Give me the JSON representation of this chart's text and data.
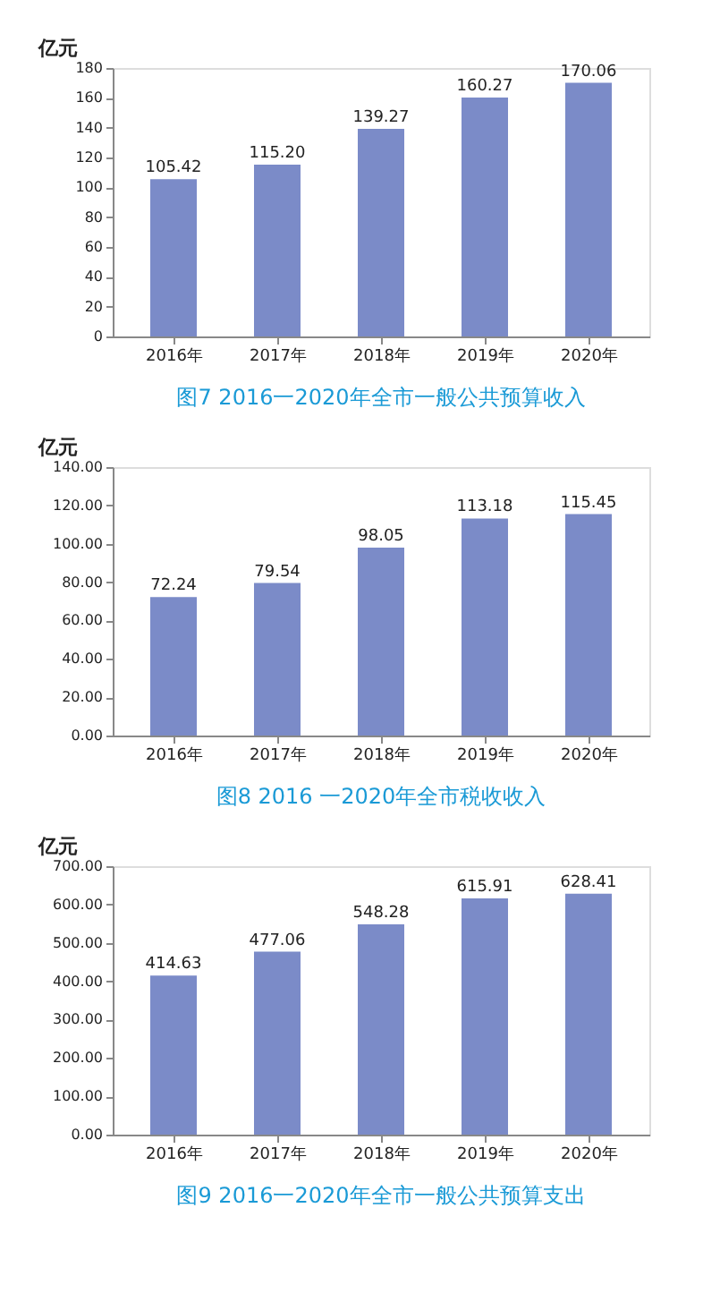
{
  "chart_data": [
    {
      "type": "bar",
      "title": "图7  2016一2020年全市一般公共预算收入",
      "ylabel": "亿元",
      "categories": [
        "2016年",
        "2017年",
        "2018年",
        "2019年",
        "2020年"
      ],
      "values": [
        105.42,
        115.2,
        139.27,
        160.27,
        170.06
      ],
      "value_labels": [
        "105.42",
        "115.20",
        "139.27",
        "160.27",
        "170.06"
      ],
      "color": "#7b8bc8",
      "ylim": [
        0,
        180
      ],
      "yticks": [
        0,
        20,
        40,
        60,
        80,
        100,
        120,
        140,
        160,
        180
      ],
      "grid": false
    },
    {
      "type": "bar",
      "title": "图8  2016 一2020年全市税收收入",
      "ylabel": "亿元",
      "categories": [
        "2016年",
        "2017年",
        "2018年",
        "2019年",
        "2020年"
      ],
      "values": [
        72.24,
        79.54,
        98.05,
        113.18,
        115.45
      ],
      "value_labels": [
        "72.24",
        "79.54",
        "98.05",
        "113.18",
        "115.45"
      ],
      "color": "#7b8bc8",
      "ylim": [
        0,
        140
      ],
      "yticks": [
        {
          "value": 0,
          "label": "0.00"
        },
        {
          "value": 20,
          "label": "20.00"
        },
        {
          "value": 40,
          "label": "40.00"
        },
        {
          "value": 60,
          "label": "60.00"
        },
        {
          "value": 80,
          "label": "80.00"
        },
        {
          "value": 100,
          "label": "100.00"
        },
        {
          "value": 120,
          "label": "120.00"
        },
        {
          "value": 140,
          "label": "140.00"
        }
      ],
      "grid": false
    },
    {
      "type": "bar",
      "title": "图9  2016一2020年全市一般公共预算支出",
      "ylabel": "亿元",
      "categories": [
        "2016年",
        "2017年",
        "2018年",
        "2019年",
        "2020年"
      ],
      "values": [
        414.63,
        477.06,
        548.28,
        615.91,
        628.41
      ],
      "value_labels": [
        "414.63",
        "477.06",
        "548.28",
        "615.91",
        "628.41"
      ],
      "color": "#7b8bc8",
      "ylim": [
        0,
        700
      ],
      "yticks": [
        {
          "value": 0,
          "label": "0.00"
        },
        {
          "value": 100,
          "label": "100.00"
        },
        {
          "value": 200,
          "label": "200.00"
        },
        {
          "value": 300,
          "label": "300.00"
        },
        {
          "value": 400,
          "label": "400.00"
        },
        {
          "value": 500,
          "label": "500.00"
        },
        {
          "value": 600,
          "label": "600.00"
        },
        {
          "value": 700,
          "label": "700.00"
        }
      ],
      "grid": false
    }
  ]
}
